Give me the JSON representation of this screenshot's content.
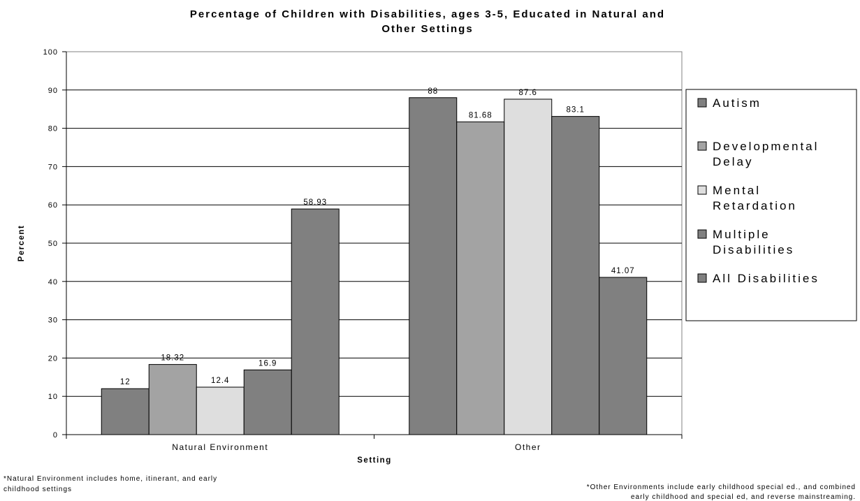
{
  "chart_data": {
    "type": "bar",
    "title_lines": [
      "Percentage of Children with Disabilities, ages 3-5, Educated in Natural and",
      "Other Settings"
    ],
    "xlabel": "Setting",
    "ylabel": "Percent",
    "ylim": [
      0,
      100
    ],
    "yticks": [
      "0",
      "10",
      "20",
      "30",
      "40",
      "50",
      "60",
      "70",
      "80",
      "90",
      "100"
    ],
    "categories": [
      "Natural Environment",
      "Other"
    ],
    "series": [
      {
        "name_lines": [
          "Autism"
        ],
        "color": "#808080",
        "values": [
          12,
          88
        ],
        "labels": [
          "12",
          "88"
        ]
      },
      {
        "name_lines": [
          "Developmental",
          "Delay"
        ],
        "color": "#a3a3a3",
        "values": [
          18.32,
          81.68
        ],
        "labels": [
          "18.32",
          "81.68"
        ]
      },
      {
        "name_lines": [
          "Mental",
          "Retardation"
        ],
        "color": "#dedede",
        "values": [
          12.4,
          87.6
        ],
        "labels": [
          "12.4",
          "87.6"
        ]
      },
      {
        "name_lines": [
          "Multiple",
          "Disabilities"
        ],
        "color": "#808080",
        "values": [
          16.9,
          83.1
        ],
        "labels": [
          "16.9",
          "83.1"
        ]
      },
      {
        "name_lines": [
          "All Disabilities"
        ],
        "color": "#808080",
        "values": [
          58.93,
          41.07
        ],
        "labels": [
          "58.93",
          "41.07"
        ]
      }
    ],
    "grid": true,
    "legend": "right",
    "footnotes": {
      "left_lines": [
        "*Natural Environment includes home, itinerant, and early",
        "childhood settings"
      ],
      "right_lines": [
        "*Other Environments include early childhood special ed., and combined",
        "early childhood and special ed, and reverse mainstreaming."
      ]
    }
  }
}
